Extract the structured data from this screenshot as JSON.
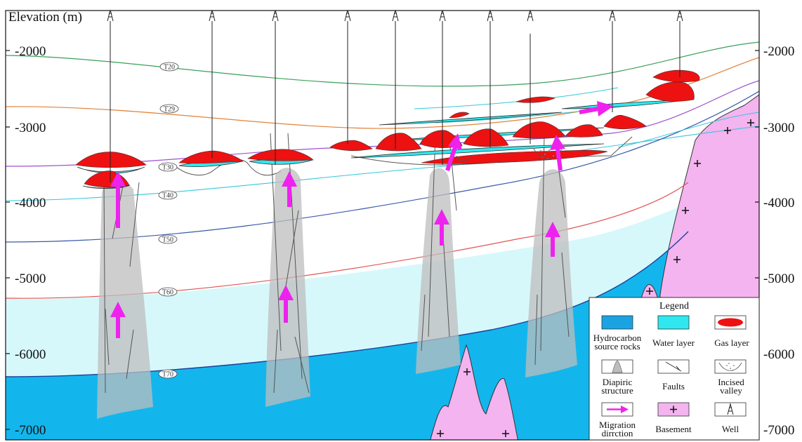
{
  "figure": {
    "y_axis_title": "Elevation (m)",
    "y_ticks": [
      "-2000",
      "-3000",
      "-4000",
      "-5000",
      "-6000",
      "-7000"
    ],
    "horizons": [
      "T20",
      "T29",
      "T30",
      "T40",
      "T50",
      "T60",
      "T70"
    ]
  },
  "legend": {
    "title": "Legend",
    "items": [
      {
        "label_line1": "Hydrocarbon",
        "label_line2": "source rocks",
        "icon": "hydrocarbon-source-rock-swatch",
        "color": "#1aa3e3"
      },
      {
        "label_line1": "Water layer",
        "label_line2": "",
        "icon": "water-layer-swatch",
        "color": "#2fe8ef"
      },
      {
        "label_line1": "Gas layer",
        "label_line2": "",
        "icon": "gas-layer-swatch",
        "color": "#ee1111"
      },
      {
        "label_line1": "Diapiric",
        "label_line2": "structure",
        "icon": "diapiric-structure-swatch",
        "color": "#bdbdbd"
      },
      {
        "label_line1": "Faults",
        "label_line2": "",
        "icon": "fault-swatch",
        "color": "#555555"
      },
      {
        "label_line1": "Incised",
        "label_line2": "valley",
        "icon": "incised-valley-swatch",
        "color": "#777777"
      },
      {
        "label_line1": "Migration",
        "label_line2": "dirrction",
        "icon": "migration-arrow-swatch",
        "color": "#ee22ee"
      },
      {
        "label_line1": "Basement",
        "label_line2": "",
        "icon": "basement-swatch",
        "color": "#f3b4ef"
      },
      {
        "label_line1": "Well",
        "label_line2": "",
        "icon": "well-symbol-swatch",
        "color": "#333333"
      }
    ]
  }
}
